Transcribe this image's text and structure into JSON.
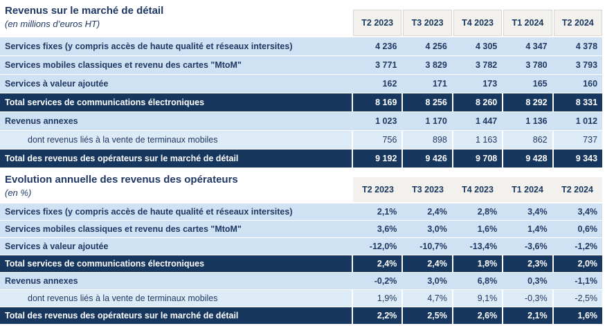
{
  "colors": {
    "navy_band": "#17375E",
    "text_navy": "#1F3864",
    "row_blue": "#CFE2F3",
    "row_blue_light": "#DDEBF7",
    "header_cream": "#F3F1ED",
    "header_border": "#D9D6CF",
    "total_text": "#FFFFFF"
  },
  "tables": [
    {
      "title": "Revenus sur le marché de détail",
      "subtitle": "(en millions d’euros HT)",
      "columns": [
        "T2 2023",
        "T3 2023",
        "T4 2023",
        "T1 2024",
        "T2 2024"
      ],
      "rows": [
        {
          "label": "Services fixes (y compris accès de haute qualité et réseaux intersites)",
          "style": "normal",
          "values": [
            "4 236",
            "4 256",
            "4 305",
            "4 347",
            "4 378"
          ]
        },
        {
          "label": "Services mobiles classiques et revenu des cartes \"MtoM\"",
          "style": "normal",
          "values": [
            "3 771",
            "3 829",
            "3 782",
            "3 780",
            "3 793"
          ]
        },
        {
          "label": "Services à valeur ajoutée",
          "style": "normal",
          "values": [
            "162",
            "171",
            "173",
            "165",
            "160"
          ]
        },
        {
          "label": "Total services de communications électroniques",
          "style": "total",
          "values": [
            "8 169",
            "8 256",
            "8 260",
            "8 292",
            "8 331"
          ]
        },
        {
          "label": "Revenus annexes",
          "style": "normal",
          "values": [
            "1 023",
            "1 170",
            "1 447",
            "1 136",
            "1 012"
          ]
        },
        {
          "label": "dont revenus liés à la vente de terminaux mobiles",
          "style": "sub",
          "values": [
            "756",
            "898",
            "1 163",
            "862",
            "737"
          ]
        },
        {
          "label": "Total des revenus des opérateurs sur le marché de détail",
          "style": "total",
          "values": [
            "9 192",
            "9 426",
            "9 708",
            "9 428",
            "9 343"
          ]
        }
      ]
    },
    {
      "title": "Evolution annuelle des revenus des opérateurs",
      "subtitle": "(en %)",
      "columns": [
        "T2 2023",
        "T3 2023",
        "T4 2023",
        "T1 2024",
        "T2 2024"
      ],
      "rows": [
        {
          "label": "Services fixes (y compris accès de haute qualité et réseaux intersites)",
          "style": "normal",
          "values": [
            "2,1%",
            "2,4%",
            "2,8%",
            "3,4%",
            "3,4%"
          ]
        },
        {
          "label": "Services mobiles classiques et revenu des cartes \"MtoM\"",
          "style": "normal",
          "values": [
            "3,6%",
            "3,0%",
            "1,6%",
            "1,4%",
            "0,6%"
          ]
        },
        {
          "label": "Services à valeur ajoutée",
          "style": "normal",
          "values": [
            "-12,0%",
            "-10,7%",
            "-13,4%",
            "-3,6%",
            "-1,2%"
          ]
        },
        {
          "label": "Total services de communications électroniques",
          "style": "total",
          "values": [
            "2,4%",
            "2,4%",
            "1,8%",
            "2,3%",
            "2,0%"
          ]
        },
        {
          "label": "Revenus annexes",
          "style": "normal",
          "values": [
            "-0,2%",
            "3,0%",
            "6,8%",
            "0,3%",
            "-1,1%"
          ]
        },
        {
          "label": "dont revenus liés à la vente de terminaux mobiles",
          "style": "sub",
          "values": [
            "1,9%",
            "4,7%",
            "9,1%",
            "-0,3%",
            "-2,5%"
          ]
        },
        {
          "label": "Total des revenus des opérateurs sur le marché de détail",
          "style": "total",
          "values": [
            "2,2%",
            "2,5%",
            "2,6%",
            "2,1%",
            "1,6%"
          ]
        }
      ]
    }
  ]
}
